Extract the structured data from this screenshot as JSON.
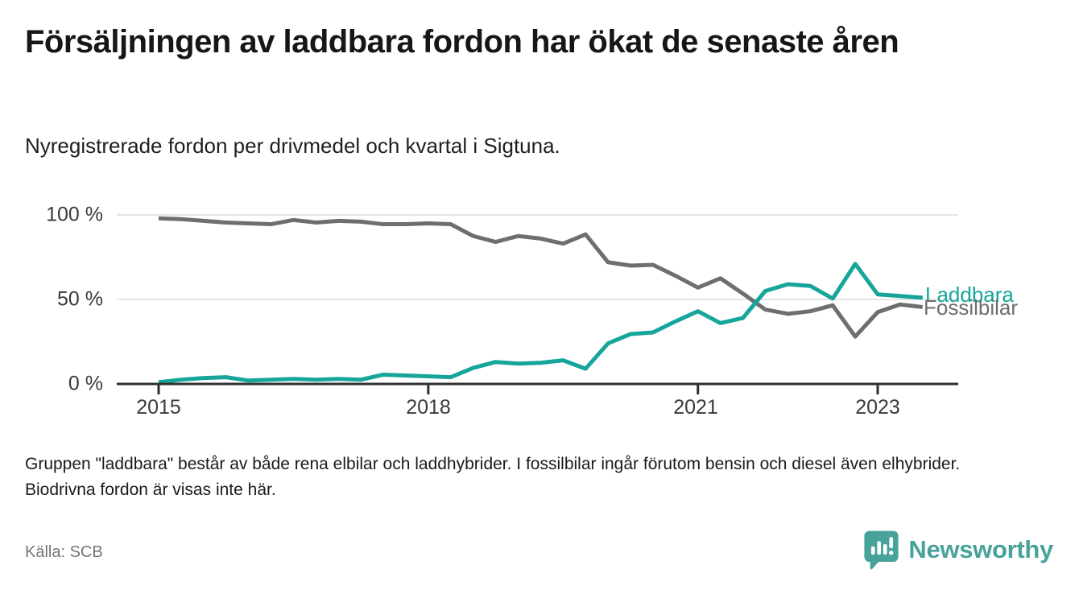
{
  "header": {
    "title": "Försäljningen av laddbara fordon har ökat de senaste åren",
    "subtitle": "Nyregistrerade fordon per drivmedel och kvartal i Sigtuna."
  },
  "chart_data": {
    "type": "line",
    "unit": "%",
    "grid": "horizontal",
    "legend_position": "end-of-line-right",
    "ylim": [
      0,
      100
    ],
    "x": [
      "2015 Q1",
      "2015 Q2",
      "2015 Q3",
      "2015 Q4",
      "2016 Q1",
      "2016 Q2",
      "2016 Q3",
      "2016 Q4",
      "2017 Q1",
      "2017 Q2",
      "2017 Q3",
      "2017 Q4",
      "2018 Q1",
      "2018 Q2",
      "2018 Q3",
      "2018 Q4",
      "2019 Q1",
      "2019 Q2",
      "2019 Q3",
      "2019 Q4",
      "2020 Q1",
      "2020 Q2",
      "2020 Q3",
      "2020 Q4",
      "2021 Q1",
      "2021 Q2",
      "2021 Q3",
      "2021 Q4",
      "2022 Q1",
      "2022 Q2",
      "2022 Q3",
      "2022 Q4",
      "2023 Q1",
      "2023 Q2",
      "2023 Q3"
    ],
    "series": [
      {
        "name": "Fossilbilar",
        "color": "#6e6e71",
        "values": [
          98,
          97.5,
          96.5,
          95.5,
          95,
          94.5,
          97,
          95.5,
          96.5,
          96,
          94.5,
          94.5,
          95,
          94.5,
          87.5,
          84,
          87.5,
          86,
          83,
          88.5,
          72,
          70,
          70.5,
          64,
          57,
          62.5,
          53.5,
          44,
          41.5,
          43,
          46.5,
          28,
          42.5,
          47,
          45.5
        ]
      },
      {
        "name": "Laddbara",
        "color": "#16a59a",
        "values": [
          1,
          2.5,
          3.5,
          4,
          2,
          2.5,
          3,
          2.5,
          3,
          2.5,
          5.5,
          5,
          4.5,
          4,
          9.5,
          13,
          12,
          12.5,
          14,
          9,
          24,
          29.5,
          30.5,
          37,
          43,
          36,
          39,
          55,
          59,
          58,
          50.5,
          71,
          53,
          52,
          51
        ]
      }
    ],
    "y_ticks": [
      {
        "value": 0,
        "label": "0 %"
      },
      {
        "value": 50,
        "label": "50 %"
      },
      {
        "value": 100,
        "label": "100 %"
      }
    ],
    "x_ticks": [
      {
        "index": 0,
        "label": "2015"
      },
      {
        "index": 12,
        "label": "2018"
      },
      {
        "index": 24,
        "label": "2021"
      },
      {
        "index": 32,
        "label": "2023"
      }
    ]
  },
  "footer": {
    "note": "Gruppen \"laddbara\" består av både rena elbilar och laddhybrider. I fossilbilar ingår förutom bensin och diesel även elhybrider. Biodrivna fordon är visas inte här.",
    "source": "Källa: SCB"
  },
  "branding": {
    "logo_text": "Newsworthy",
    "color": "#47a39a",
    "icon": "bar-chart-speech-bubble-icon"
  }
}
